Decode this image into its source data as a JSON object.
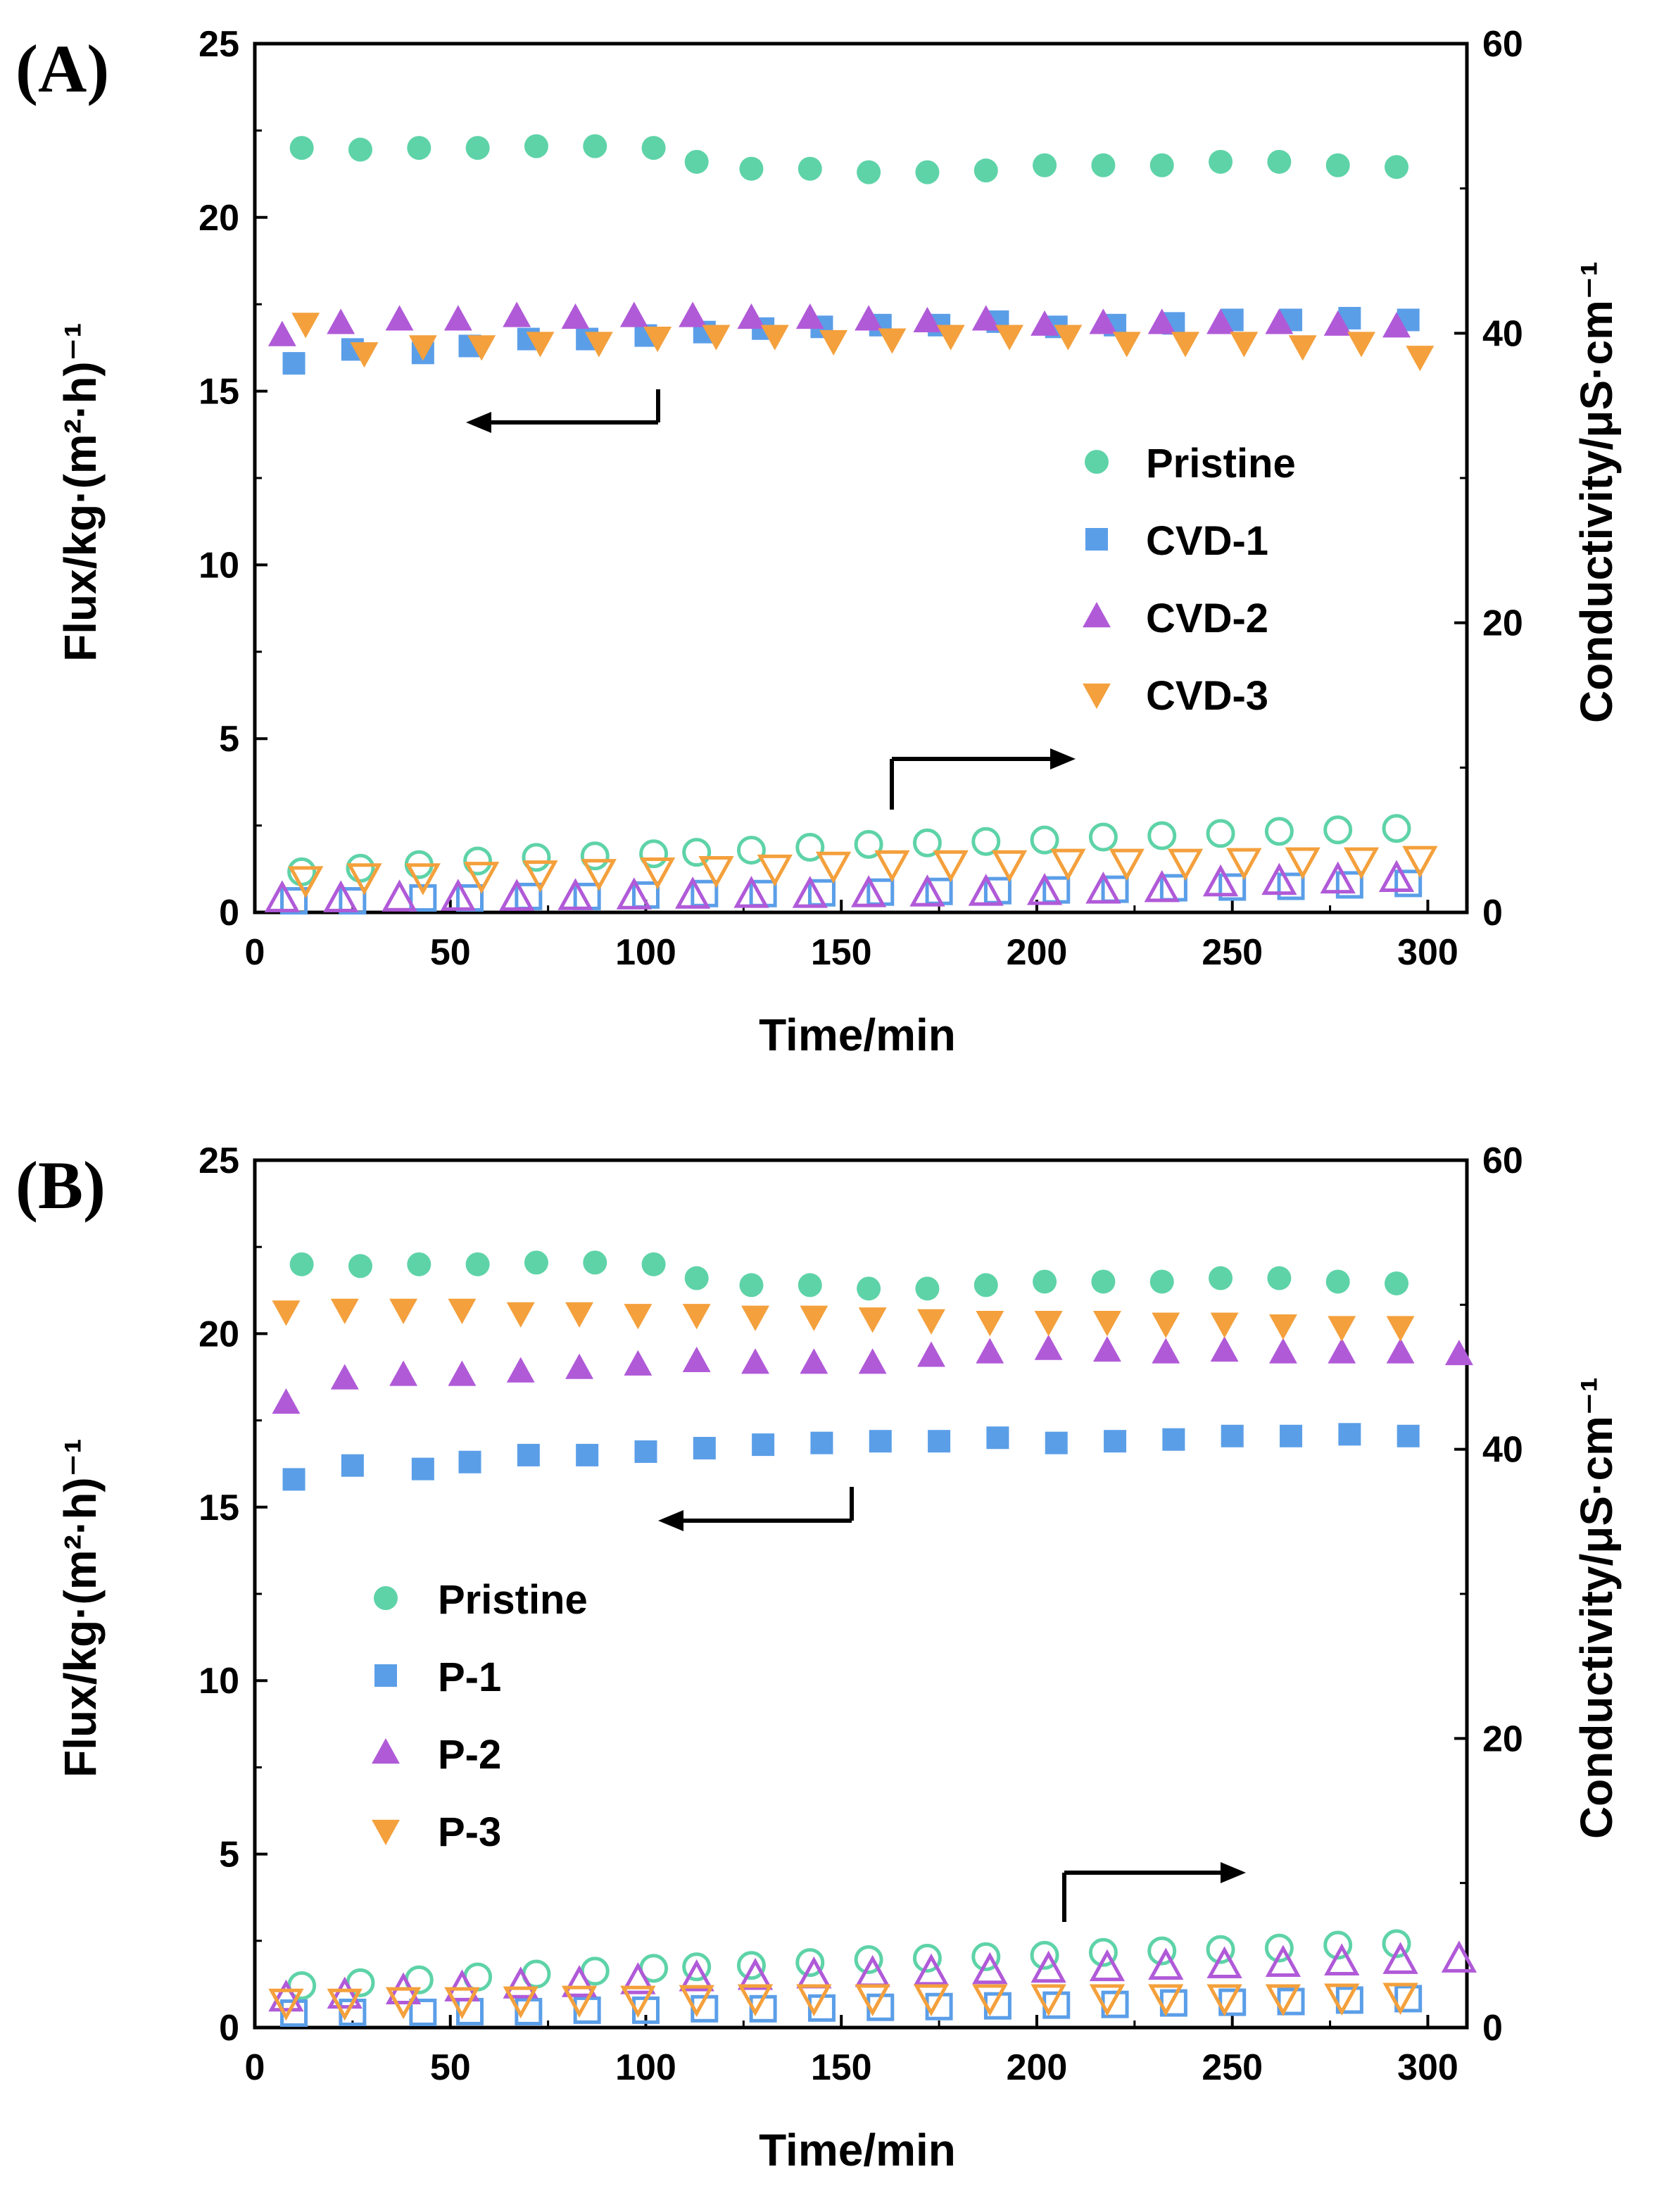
{
  "chart_data": [
    {
      "type": "scatter",
      "panel_label": "(A)",
      "xlabel": "Time/min",
      "ylabel_left": "Flux/kg·(m²·h)⁻¹",
      "ylabel_right": "Conductivity/μS·cm⁻¹",
      "xlim": [
        0,
        310
      ],
      "ylim_left": [
        0,
        25
      ],
      "ylim_right": [
        0,
        60
      ],
      "xticks": [
        "0",
        "50",
        "100",
        "150",
        "200",
        "250",
        "300"
      ],
      "yticks_left": [
        "0",
        "5",
        "10",
        "15",
        "20",
        "25"
      ],
      "yticks_right": [
        "0",
        "20",
        "40",
        "60"
      ],
      "legend_position": "right-middle",
      "legend": [
        "Pristine",
        "CVD-1",
        "CVD-2",
        "CVD-3"
      ],
      "arrow_flux": "points-left",
      "arrow_conductivity": "points-right",
      "series": [
        {
          "name": "Pristine",
          "marker": "circle",
          "color": "#5ed3a8",
          "axis": "left",
          "filled": true,
          "x": [
            12,
            27,
            42,
            57,
            72,
            87,
            102,
            113,
            127,
            142,
            157,
            172,
            187,
            202,
            217,
            232,
            247,
            262,
            277,
            292
          ],
          "values": [
            22.0,
            21.95,
            22.0,
            22.0,
            22.05,
            22.05,
            22.0,
            21.6,
            21.4,
            21.4,
            21.3,
            21.3,
            21.35,
            21.5,
            21.5,
            21.5,
            21.6,
            21.6,
            21.5,
            21.45
          ]
        },
        {
          "name": "CVD-1",
          "marker": "square",
          "color": "#5b9ee8",
          "axis": "left",
          "filled": true,
          "x": [
            10,
            25,
            43,
            55,
            70,
            85,
            100,
            115,
            130,
            145,
            160,
            175,
            190,
            205,
            220,
            235,
            250,
            265,
            280,
            295
          ],
          "values": [
            15.8,
            16.2,
            16.1,
            16.3,
            16.5,
            16.5,
            16.6,
            16.7,
            16.8,
            16.85,
            16.9,
            16.9,
            17.0,
            16.85,
            16.9,
            16.95,
            17.05,
            17.05,
            17.1,
            17.05
          ]
        },
        {
          "name": "CVD-2",
          "marker": "triangle-up",
          "color": "#b05ad8",
          "axis": "left",
          "filled": true,
          "x": [
            7,
            22,
            37,
            52,
            67,
            82,
            97,
            112,
            127,
            142,
            157,
            172,
            187,
            202,
            217,
            232,
            247,
            262,
            277,
            292
          ],
          "values": [
            16.6,
            16.95,
            17.05,
            17.05,
            17.15,
            17.1,
            17.15,
            17.15,
            17.1,
            17.1,
            17.05,
            17.0,
            17.05,
            16.9,
            16.95,
            16.95,
            16.95,
            16.95,
            16.9,
            16.85
          ]
        },
        {
          "name": "CVD-3",
          "marker": "triangle-down",
          "color": "#f4a03c",
          "axis": "left",
          "filled": true,
          "x": [
            13,
            28,
            43,
            58,
            73,
            88,
            103,
            118,
            133,
            148,
            163,
            178,
            193,
            208,
            223,
            238,
            253,
            268,
            283,
            298
          ],
          "values": [
            16.95,
            16.1,
            16.3,
            16.3,
            16.4,
            16.4,
            16.55,
            16.6,
            16.6,
            16.45,
            16.5,
            16.6,
            16.6,
            16.6,
            16.4,
            16.4,
            16.4,
            16.3,
            16.4,
            16.0
          ]
        },
        {
          "name": "Pristine-conductivity",
          "marker": "circle",
          "color": "#5ed3a8",
          "axis": "right",
          "filled": false,
          "x": [
            12,
            27,
            42,
            57,
            72,
            87,
            102,
            113,
            127,
            142,
            157,
            172,
            187,
            202,
            217,
            232,
            247,
            262,
            277,
            292
          ],
          "values": [
            2.8,
            3.05,
            3.3,
            3.55,
            3.8,
            3.9,
            4.05,
            4.15,
            4.3,
            4.5,
            4.7,
            4.8,
            4.9,
            5.0,
            5.2,
            5.3,
            5.45,
            5.6,
            5.7,
            5.8
          ]
        },
        {
          "name": "CVD-1-conductivity",
          "marker": "square",
          "color": "#5b9ee8",
          "axis": "right",
          "filled": false,
          "x": [
            10,
            25,
            43,
            55,
            70,
            85,
            100,
            115,
            130,
            145,
            160,
            175,
            190,
            205,
            220,
            235,
            250,
            265,
            280,
            295
          ],
          "values": [
            0.8,
            0.8,
            1.0,
            1.0,
            1.1,
            1.1,
            1.2,
            1.3,
            1.3,
            1.35,
            1.4,
            1.45,
            1.5,
            1.55,
            1.6,
            1.7,
            1.75,
            1.8,
            1.9,
            2.0
          ]
        },
        {
          "name": "CVD-2-conductivity",
          "marker": "triangle-up",
          "color": "#b05ad8",
          "axis": "right",
          "filled": false,
          "x": [
            7,
            22,
            37,
            52,
            67,
            82,
            97,
            112,
            127,
            142,
            157,
            172,
            187,
            202,
            217,
            232,
            247,
            262,
            277,
            292
          ],
          "values": [
            0.9,
            0.9,
            0.95,
            1.0,
            1.0,
            1.05,
            1.1,
            1.15,
            1.2,
            1.2,
            1.25,
            1.3,
            1.35,
            1.4,
            1.5,
            1.6,
            2.0,
            2.1,
            2.2,
            2.3
          ]
        },
        {
          "name": "CVD-3-conductivity",
          "marker": "triangle-down",
          "color": "#f4a03c",
          "axis": "right",
          "filled": false,
          "x": [
            13,
            28,
            43,
            58,
            73,
            88,
            103,
            118,
            133,
            148,
            163,
            178,
            193,
            208,
            223,
            238,
            253,
            268,
            283,
            298
          ],
          "values": [
            2.3,
            2.5,
            2.5,
            2.6,
            2.7,
            2.8,
            2.9,
            3.0,
            3.1,
            3.3,
            3.4,
            3.4,
            3.4,
            3.5,
            3.5,
            3.5,
            3.55,
            3.6,
            3.6,
            3.7
          ]
        }
      ]
    },
    {
      "type": "scatter",
      "panel_label": "(B)",
      "xlabel": "Time/min",
      "ylabel_left": "Flux/kg·(m²·h)⁻¹",
      "ylabel_right": "Conductivity/μS·cm⁻¹",
      "xlim": [
        0,
        310
      ],
      "ylim_left": [
        0,
        25
      ],
      "ylim_right": [
        0,
        60
      ],
      "xticks": [
        "0",
        "50",
        "100",
        "150",
        "200",
        "250",
        "300"
      ],
      "yticks_left": [
        "0",
        "5",
        "10",
        "15",
        "20",
        "25"
      ],
      "yticks_right": [
        "0",
        "20",
        "40",
        "60"
      ],
      "legend_position": "left-middle",
      "legend": [
        "Pristine",
        "P-1",
        "P-2",
        "P-3"
      ],
      "arrow_flux": "points-left",
      "arrow_conductivity": "points-right",
      "series": [
        {
          "name": "Pristine",
          "marker": "circle",
          "color": "#5ed3a8",
          "axis": "left",
          "filled": true,
          "x": [
            12,
            27,
            42,
            57,
            72,
            87,
            102,
            113,
            127,
            142,
            157,
            172,
            187,
            202,
            217,
            232,
            247,
            262,
            277,
            292
          ],
          "values": [
            22.0,
            21.95,
            22.0,
            22.0,
            22.05,
            22.05,
            22.0,
            21.6,
            21.4,
            21.4,
            21.3,
            21.3,
            21.4,
            21.5,
            21.5,
            21.5,
            21.6,
            21.6,
            21.5,
            21.45
          ]
        },
        {
          "name": "P-1",
          "marker": "square",
          "color": "#5b9ee8",
          "axis": "left",
          "filled": true,
          "x": [
            10,
            25,
            43,
            55,
            70,
            85,
            100,
            115,
            130,
            145,
            160,
            175,
            190,
            205,
            220,
            235,
            250,
            265,
            280,
            295
          ],
          "values": [
            15.8,
            16.2,
            16.1,
            16.3,
            16.5,
            16.5,
            16.6,
            16.7,
            16.8,
            16.85,
            16.9,
            16.9,
            17.0,
            16.85,
            16.9,
            16.95,
            17.05,
            17.05,
            17.1,
            17.05
          ]
        },
        {
          "name": "P-2",
          "marker": "triangle-up",
          "color": "#b05ad8",
          "axis": "left",
          "filled": true,
          "x": [
            8,
            23,
            38,
            53,
            68,
            83,
            98,
            113,
            128,
            143,
            158,
            173,
            188,
            203,
            218,
            233,
            248,
            263,
            278,
            293,
            308
          ],
          "values": [
            18.0,
            18.7,
            18.8,
            18.8,
            18.9,
            19.0,
            19.1,
            19.2,
            19.15,
            19.15,
            19.15,
            19.35,
            19.45,
            19.55,
            19.5,
            19.45,
            19.5,
            19.45,
            19.45,
            19.45,
            19.4
          ]
        },
        {
          "name": "P-3",
          "marker": "triangle-down",
          "color": "#f4a03c",
          "axis": "left",
          "filled": true,
          "x": [
            8,
            23,
            38,
            53,
            68,
            83,
            98,
            113,
            128,
            143,
            158,
            173,
            188,
            203,
            218,
            233,
            248,
            263,
            278,
            293
          ],
          "values": [
            20.65,
            20.7,
            20.7,
            20.7,
            20.6,
            20.6,
            20.55,
            20.55,
            20.5,
            20.5,
            20.45,
            20.4,
            20.35,
            20.35,
            20.35,
            20.3,
            20.3,
            20.25,
            20.2,
            20.2
          ]
        },
        {
          "name": "Pristine-conductivity",
          "marker": "circle",
          "color": "#5ed3a8",
          "axis": "right",
          "filled": false,
          "x": [
            12,
            27,
            42,
            57,
            72,
            87,
            102,
            113,
            127,
            142,
            157,
            172,
            187,
            202,
            217,
            232,
            247,
            262,
            277,
            292
          ],
          "values": [
            2.9,
            3.1,
            3.3,
            3.5,
            3.7,
            3.9,
            4.1,
            4.2,
            4.3,
            4.5,
            4.7,
            4.8,
            4.9,
            5.0,
            5.2,
            5.3,
            5.4,
            5.5,
            5.7,
            5.8
          ]
        },
        {
          "name": "P-1-conductivity",
          "marker": "square",
          "color": "#5b9ee8",
          "axis": "right",
          "filled": false,
          "x": [
            10,
            25,
            43,
            55,
            70,
            85,
            100,
            115,
            130,
            145,
            160,
            175,
            190,
            205,
            220,
            235,
            250,
            265,
            280,
            295
          ],
          "values": [
            1.0,
            1.05,
            1.05,
            1.1,
            1.1,
            1.2,
            1.2,
            1.3,
            1.3,
            1.35,
            1.4,
            1.45,
            1.5,
            1.55,
            1.6,
            1.7,
            1.75,
            1.8,
            1.9,
            2.0
          ]
        },
        {
          "name": "P-2-conductivity",
          "marker": "triangle-up",
          "color": "#b05ad8",
          "axis": "right",
          "filled": false,
          "x": [
            8,
            23,
            38,
            53,
            68,
            83,
            98,
            113,
            128,
            143,
            158,
            173,
            188,
            203,
            218,
            233,
            248,
            263,
            278,
            293,
            308
          ],
          "values": [
            2.0,
            2.2,
            2.5,
            2.7,
            2.9,
            3.0,
            3.2,
            3.4,
            3.5,
            3.6,
            3.7,
            3.8,
            3.9,
            4.0,
            4.1,
            4.2,
            4.3,
            4.4,
            4.5,
            4.6,
            4.7
          ]
        },
        {
          "name": "P-3-conductivity",
          "marker": "triangle-down",
          "color": "#f4a03c",
          "axis": "right",
          "filled": false,
          "x": [
            8,
            23,
            38,
            53,
            68,
            83,
            98,
            113,
            128,
            143,
            158,
            173,
            188,
            203,
            218,
            233,
            248,
            263,
            278,
            293
          ],
          "values": [
            1.8,
            1.8,
            1.9,
            1.9,
            1.95,
            2.0,
            2.0,
            2.05,
            2.1,
            2.1,
            2.1,
            2.1,
            2.1,
            2.1,
            2.1,
            2.1,
            2.1,
            2.1,
            2.15,
            2.2
          ]
        }
      ]
    }
  ]
}
